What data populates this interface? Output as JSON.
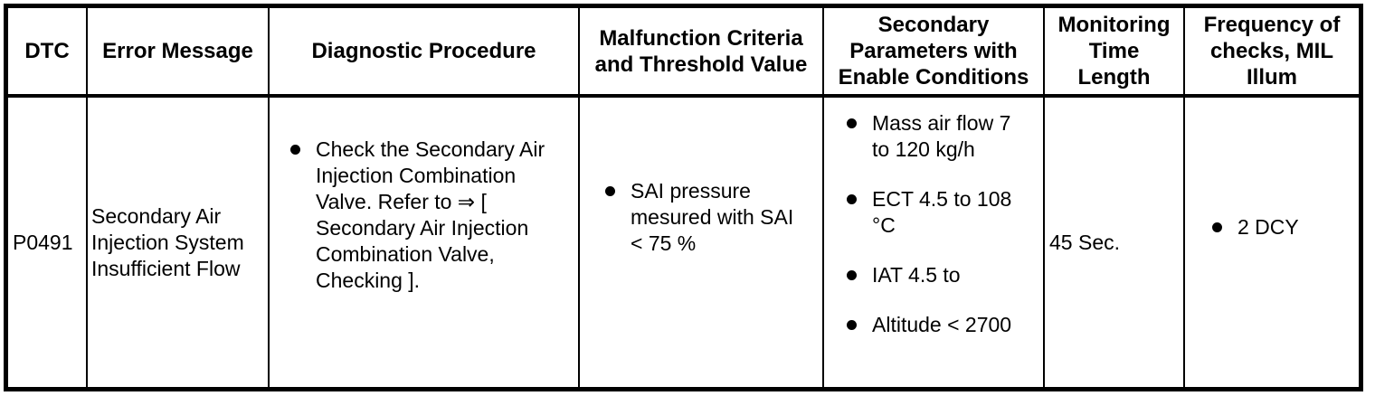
{
  "colors": {
    "border": "#000000",
    "text": "#000000",
    "background": "#ffffff"
  },
  "table": {
    "columns": [
      {
        "label": "DTC"
      },
      {
        "label": "Error Message"
      },
      {
        "label": "Diagnostic Procedure"
      },
      {
        "label": "Malfunction Criteria\nand Threshold Value"
      },
      {
        "label": "Secondary\nParameters with\nEnable Conditions"
      },
      {
        "label": "Monitoring\nTime\nLength"
      },
      {
        "label": "Frequency of\nchecks, MIL\nIllum"
      }
    ],
    "row": {
      "dtc": "P0491",
      "error_message": "Secondary Air\nInjection System\nInsufficient Flow",
      "diagnostic_procedure_items": [
        "Check the Secondary Air\nInjection Combination\nValve. Refer to ⇒ [\nSecondary Air Injection\nCombination Valve,\nChecking ]."
      ],
      "malfunction_criteria_items": [
        "SAI pressure\nmesured with SAI\n< 75 %"
      ],
      "secondary_parameters_items": [
        "Mass air flow 7\nto 120 kg/h",
        "ECT 4.5 to 108\n°C",
        "IAT 4.5 to",
        "Altitude < 2700"
      ],
      "monitoring_time": "45 Sec.",
      "frequency_items": [
        "2 DCY"
      ]
    }
  }
}
